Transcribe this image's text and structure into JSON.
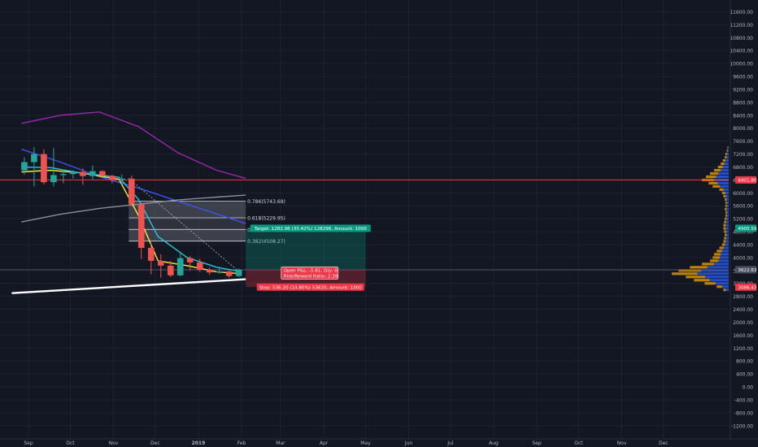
{
  "chart_data": {
    "type": "candlestick",
    "y_axis": {
      "ticks": [
        "11600.00",
        "11200.00",
        "10800.00",
        "10400.00",
        "10000.00",
        "9600.00",
        "9200.00",
        "8800.00",
        "8400.00",
        "8000.00",
        "7600.00",
        "7200.00",
        "6800.00",
        "6400.00",
        "6000.00",
        "5600.00",
        "5200.00",
        "4800.00",
        "4400.00",
        "4000.00",
        "3600.00",
        "3200.00",
        "2800.00",
        "2400.00",
        "2000.00",
        "1600.00",
        "1200.00",
        "800.00",
        "400.00",
        "0.00",
        "-400.00",
        "-800.00",
        "-1200.00"
      ],
      "range": [
        -1300,
        11850
      ]
    },
    "x_axis": {
      "ticks": [
        "Sep",
        "Oct",
        "Nov",
        "Dec",
        "2019",
        "Feb",
        "Mar",
        "Apr",
        "May",
        "Jun",
        "Jul",
        "Aug",
        "Sep",
        "Oct",
        "Nov",
        "Dec"
      ]
    },
    "price_labels": [
      {
        "text": "6401.80",
        "value": 6401.8,
        "color": "#f23645"
      },
      {
        "text": "4905.59",
        "value": 4905.59,
        "color": "#089981"
      },
      {
        "text": "3622.63",
        "value": 3622.63,
        "color": "#4a5060"
      },
      {
        "text": "3086.43",
        "value": 3086.43,
        "color": "#f23645"
      }
    ],
    "candles": [
      {
        "date": "2018-08-27",
        "o": 6700,
        "h": 7100,
        "l": 6560,
        "c": 6950
      },
      {
        "date": "2018-09-03",
        "o": 6950,
        "h": 7420,
        "l": 6200,
        "c": 7200
      },
      {
        "date": "2018-09-10",
        "o": 7200,
        "h": 7350,
        "l": 6260,
        "c": 6330
      },
      {
        "date": "2018-09-17",
        "o": 6330,
        "h": 7380,
        "l": 6200,
        "c": 6550
      },
      {
        "date": "2018-09-24",
        "o": 6550,
        "h": 6720,
        "l": 6300,
        "c": 6580
      },
      {
        "date": "2018-10-01",
        "o": 6580,
        "h": 6700,
        "l": 6440,
        "c": 6650
      },
      {
        "date": "2018-10-08",
        "o": 6650,
        "h": 6760,
        "l": 6250,
        "c": 6520
      },
      {
        "date": "2018-10-15",
        "o": 6520,
        "h": 6850,
        "l": 6420,
        "c": 6670
      },
      {
        "date": "2018-10-22",
        "o": 6670,
        "h": 6700,
        "l": 6450,
        "c": 6530
      },
      {
        "date": "2018-10-29",
        "o": 6530,
        "h": 6560,
        "l": 6300,
        "c": 6400
      },
      {
        "date": "2018-11-05",
        "o": 6400,
        "h": 6560,
        "l": 6260,
        "c": 6440
      },
      {
        "date": "2018-11-12",
        "o": 6440,
        "h": 6540,
        "l": 5600,
        "c": 5650
      },
      {
        "date": "2018-11-19",
        "o": 5650,
        "h": 5680,
        "l": 3950,
        "c": 4300
      },
      {
        "date": "2018-11-26",
        "o": 4300,
        "h": 4450,
        "l": 3480,
        "c": 3900
      },
      {
        "date": "2018-12-03",
        "o": 3900,
        "h": 4100,
        "l": 3380,
        "c": 3750
      },
      {
        "date": "2018-12-10",
        "o": 3750,
        "h": 3900,
        "l": 3400,
        "c": 3450
      },
      {
        "date": "2018-12-17",
        "o": 3450,
        "h": 4150,
        "l": 3420,
        "c": 3980
      },
      {
        "date": "2018-12-24",
        "o": 3980,
        "h": 4050,
        "l": 3600,
        "c": 3850
      },
      {
        "date": "2018-12-31",
        "o": 3850,
        "h": 3960,
        "l": 3560,
        "c": 3620
      },
      {
        "date": "2019-01-07",
        "o": 3620,
        "h": 3700,
        "l": 3460,
        "c": 3540
      },
      {
        "date": "2019-01-14",
        "o": 3540,
        "h": 3720,
        "l": 3500,
        "c": 3570
      },
      {
        "date": "2019-01-21",
        "o": 3570,
        "h": 3620,
        "l": 3380,
        "c": 3430
      },
      {
        "date": "2019-01-28",
        "o": 3430,
        "h": 3660,
        "l": 3400,
        "c": 3622.63
      }
    ],
    "moving_averages": [
      {
        "color": "#9c27b0",
        "points": [
          [
            "2018-08-27",
            8150
          ],
          [
            "2018-09-24",
            8400
          ],
          [
            "2018-10-22",
            8500
          ],
          [
            "2018-11-19",
            8050
          ],
          [
            "2018-12-17",
            7250
          ],
          [
            "2019-01-14",
            6700
          ],
          [
            "2019-02-04",
            6450
          ]
        ]
      },
      {
        "color": "#3f51f5",
        "points": [
          [
            "2018-08-27",
            7350
          ],
          [
            "2018-09-24",
            6950
          ],
          [
            "2018-10-22",
            6500
          ],
          [
            "2018-11-19",
            6150
          ],
          [
            "2018-12-17",
            5750
          ],
          [
            "2019-01-14",
            5350
          ],
          [
            "2019-02-04",
            5050
          ]
        ]
      },
      {
        "color": "#8b8f99",
        "points": [
          [
            "2018-08-27",
            5100
          ],
          [
            "2018-09-24",
            5340
          ],
          [
            "2018-10-22",
            5520
          ],
          [
            "2018-11-19",
            5650
          ],
          [
            "2018-12-17",
            5780
          ],
          [
            "2019-01-14",
            5870
          ],
          [
            "2019-02-04",
            5930
          ]
        ]
      },
      {
        "color": "#ffeb3b",
        "points": [
          [
            "2018-08-27",
            6650
          ],
          [
            "2018-09-17",
            6700
          ],
          [
            "2018-10-08",
            6620
          ],
          [
            "2018-11-05",
            6420
          ],
          [
            "2018-11-19",
            5300
          ],
          [
            "2018-12-03",
            3900
          ],
          [
            "2018-12-24",
            3750
          ],
          [
            "2019-01-14",
            3560
          ],
          [
            "2019-02-01",
            3500
          ]
        ]
      },
      {
        "color": "#26c6da",
        "points": [
          [
            "2018-08-27",
            6800
          ],
          [
            "2018-09-17",
            6780
          ],
          [
            "2018-10-08",
            6620
          ],
          [
            "2018-11-05",
            6480
          ],
          [
            "2018-11-19",
            5800
          ],
          [
            "2018-12-03",
            4650
          ],
          [
            "2018-12-24",
            4000
          ],
          [
            "2019-01-14",
            3700
          ],
          [
            "2019-02-01",
            3560
          ]
        ]
      }
    ],
    "support_line": {
      "color": "#ffffff",
      "from": [
        "2018-08-20",
        2900
      ],
      "to": [
        "2019-02-04",
        3330
      ]
    },
    "horizontal_lines": [
      {
        "value": 6401.8,
        "color": "#f23645"
      },
      {
        "value": 3622.63,
        "color": "#4a5060"
      }
    ],
    "trend_line": {
      "from": [
        "2018-11-12",
        6450
      ],
      "to": [
        "2019-02-01",
        3500
      ]
    },
    "fibonacci": {
      "from_date": "2018-11-12",
      "to_date": "2019-02-04",
      "levels": [
        {
          "label": "0.786(5743.69)",
          "value": 5743.69
        },
        {
          "label": "0.618(5229.95)",
          "value": 5229.95
        },
        {
          "label": "0.5(4869.11)",
          "value": 4869.11
        },
        {
          "label": "0.382(4508.27)",
          "value": 4508.27
        }
      ]
    },
    "position": {
      "from_date": "2019-02-04",
      "to_date": "2019-05-01",
      "entry": 3622.63,
      "target": 4905.59,
      "stop": 3086.43,
      "target_label": "Target: 1282.96 (35.42%) 128296, Amount: 1000",
      "stop_label": "Stop: 536.20 (14.80%) 53620, Amount: 1000",
      "open_pl_label": "Open P&L: -5.81, Qty: 0",
      "rr_label": "Risk/Reward Ratio: 2.39"
    },
    "volume_profile": {
      "price_levels": [
        7400,
        7300,
        7200,
        7100,
        7000,
        6900,
        6800,
        6700,
        6600,
        6500,
        6400,
        6300,
        6200,
        6100,
        6000,
        5900,
        5800,
        5700,
        5600,
        5500,
        5400,
        5300,
        5200,
        5100,
        5000,
        4900,
        4800,
        4700,
        4600,
        4500,
        4400,
        4300,
        4200,
        4100,
        4000,
        3900,
        3800,
        3700,
        3600,
        3500,
        3400,
        3300,
        3200,
        3100,
        3000
      ],
      "volumes": [
        2,
        3,
        5,
        6,
        9,
        12,
        16,
        22,
        28,
        34,
        40,
        30,
        24,
        14,
        10,
        8,
        6,
        5,
        5,
        6,
        5,
        5,
        6,
        7,
        8,
        8,
        7,
        6,
        7,
        8,
        10,
        14,
        18,
        22,
        24,
        28,
        40,
        58,
        75,
        85,
        64,
        52,
        36,
        18,
        8
      ]
    }
  }
}
